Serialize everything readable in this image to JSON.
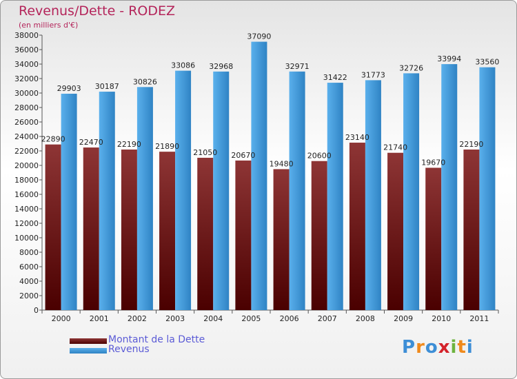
{
  "title": "Revenus/Dette - RODEZ",
  "subtitle": "(en milliers d'€)",
  "logo": {
    "text": "Proxiti",
    "letters": [
      {
        "ch": "P",
        "color": "#3d8ed6"
      },
      {
        "ch": "r",
        "color": "#f08a1c"
      },
      {
        "ch": "o",
        "color": "#3d8ed6"
      },
      {
        "ch": "x",
        "color": "#d4232b"
      },
      {
        "ch": "i",
        "color": "#6db33f"
      },
      {
        "ch": "t",
        "color": "#f08a1c"
      },
      {
        "ch": "i",
        "color": "#3d8ed6"
      }
    ]
  },
  "colors": {
    "dette_top": "#8e3535",
    "dette_bottom": "#4a0000",
    "revenus_top": "#5ab0ec",
    "revenus_bottom": "#2f83c4"
  },
  "chart_data": {
    "type": "bar",
    "title": "Revenus/Dette - RODEZ",
    "subtitle": "(en milliers d'€)",
    "categories": [
      "2000",
      "2001",
      "2002",
      "2003",
      "2004",
      "2005",
      "2006",
      "2007",
      "2008",
      "2009",
      "2010",
      "2011"
    ],
    "series": [
      {
        "name": "Montant de la Dette",
        "key": "dette",
        "values": [
          22890,
          22470,
          22190,
          21890,
          21050,
          20670,
          19480,
          20600,
          23140,
          21740,
          19670,
          22190
        ],
        "labels": [
          "22890",
          "22470",
          "22190",
          "21890",
          "21050",
          "20670",
          "19480",
          "20600",
          "23140",
          "21740",
          "19670",
          "22190"
        ]
      },
      {
        "name": "Revenus",
        "key": "revenus",
        "values": [
          29903,
          30187,
          30826,
          33086,
          32968,
          37090,
          32971,
          31422,
          31773,
          32726,
          33994,
          33560
        ],
        "labels": [
          "29903",
          "30187",
          "30826",
          "33086",
          "32968",
          "37090",
          "32971",
          "31422",
          "31773",
          "32726",
          "33994",
          "33560"
        ]
      }
    ],
    "ylim": [
      0,
      38000
    ],
    "ytick_step": 2000,
    "grid": false,
    "legend": "bottom-left"
  }
}
